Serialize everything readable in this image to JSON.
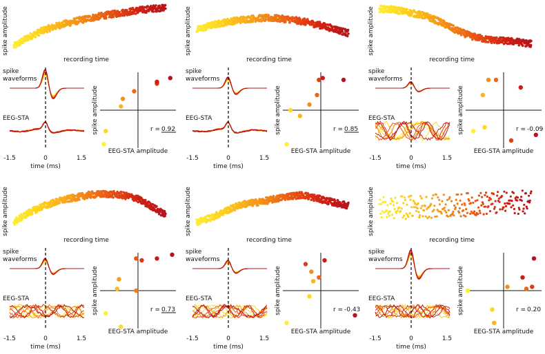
{
  "labels": {
    "spike_amplitude": "spike amplitude",
    "recording_time": "recording time",
    "spike_waveforms_1": "spike",
    "spike_waveforms_2": "waveforms",
    "eeg_sta": "EEG-STA",
    "time_ms": "time (ms)",
    "eeg_sta_amplitude": "EEG-STA amplitude",
    "tick_neg": "-1.5",
    "tick_zero": "0",
    "tick_pos": "1.5"
  },
  "colors": {
    "gradient": [
      "#ffee33",
      "#ffd21e",
      "#f9a91a",
      "#f07d17",
      "#e64a14",
      "#cf1f14",
      "#b5141c"
    ],
    "axis": "#111111",
    "dashed": "#000000"
  },
  "chart_data": [
    {
      "panel": 1,
      "type": "scatter",
      "title": "",
      "correlation": {
        "label": "r = ",
        "value": "0.92",
        "underlined": true
      },
      "amplitude_over_time": {
        "xlabel": "recording time",
        "ylabel": "spike amplitude",
        "x": [
          0,
          0.1,
          0.2,
          0.3,
          0.4,
          0.5,
          0.6,
          0.7,
          0.8,
          0.9,
          1
        ],
        "y": [
          0.1,
          0.3,
          0.45,
          0.55,
          0.63,
          0.7,
          0.76,
          0.81,
          0.86,
          0.9,
          0.93
        ]
      },
      "waveform_peak_scale": 1.0,
      "sta_pattern": "consistent",
      "scatter": {
        "xlabel": "EEG-STA amplitude",
        "ylabel": "spike amplitude",
        "points": [
          [
            -0.9,
            -0.9
          ],
          [
            -0.85,
            -0.55
          ],
          [
            -0.45,
            0.1
          ],
          [
            -0.4,
            0.3
          ],
          [
            -0.1,
            0.5
          ],
          [
            0.5,
            0.7
          ],
          [
            0.5,
            0.75
          ],
          [
            0.85,
            0.85
          ]
        ]
      }
    },
    {
      "panel": 2,
      "type": "scatter",
      "correlation": {
        "label": "r = ",
        "value": "0.85",
        "underlined": true
      },
      "amplitude_over_time": {
        "xlabel": "recording time",
        "ylabel": "spike amplitude",
        "x": [
          0,
          0.1,
          0.2,
          0.3,
          0.4,
          0.5,
          0.6,
          0.7,
          0.8,
          0.9,
          1
        ],
        "y": [
          0.45,
          0.55,
          0.62,
          0.67,
          0.7,
          0.7,
          0.68,
          0.63,
          0.56,
          0.48,
          0.38
        ]
      },
      "waveform_peak_scale": 0.6,
      "sta_pattern": "consistent",
      "scatter": {
        "xlabel": "EEG-STA amplitude",
        "ylabel": "spike amplitude",
        "points": [
          [
            -0.9,
            -0.9
          ],
          [
            -0.8,
            0.0
          ],
          [
            -0.55,
            -0.15
          ],
          [
            -0.3,
            0.15
          ],
          [
            -0.1,
            0.4
          ],
          [
            -0.05,
            0.8
          ],
          [
            0.05,
            0.85
          ],
          [
            0.6,
            0.8
          ]
        ]
      }
    },
    {
      "panel": 3,
      "type": "scatter",
      "correlation": {
        "label": "r = ",
        "value": "-0.09",
        "underlined": false
      },
      "amplitude_over_time": {
        "xlabel": "recording time",
        "ylabel": "spike amplitude",
        "x": [
          0,
          0.1,
          0.2,
          0.3,
          0.4,
          0.5,
          0.6,
          0.7,
          0.8,
          0.9,
          1
        ],
        "y": [
          0.9,
          0.88,
          0.82,
          0.75,
          0.62,
          0.45,
          0.32,
          0.25,
          0.22,
          0.2,
          0.15
        ]
      },
      "waveform_peak_scale": 0.35,
      "sta_pattern": "noisy",
      "scatter": {
        "xlabel": "EEG-STA amplitude",
        "ylabel": "spike amplitude",
        "points": [
          [
            -0.8,
            -0.55
          ],
          [
            -0.5,
            -0.45
          ],
          [
            -0.55,
            0.4
          ],
          [
            -0.4,
            0.8
          ],
          [
            -0.2,
            0.8
          ],
          [
            0.2,
            -0.8
          ],
          [
            0.45,
            0.6
          ],
          [
            0.85,
            -0.65
          ]
        ]
      }
    },
    {
      "panel": 4,
      "type": "scatter",
      "correlation": {
        "label": "r = ",
        "value": "0.73",
        "underlined": true
      },
      "amplitude_over_time": {
        "xlabel": "recording time",
        "ylabel": "spike amplitude",
        "x": [
          0,
          0.1,
          0.2,
          0.3,
          0.4,
          0.5,
          0.6,
          0.7,
          0.8,
          0.9,
          1
        ],
        "y": [
          0.2,
          0.4,
          0.55,
          0.65,
          0.72,
          0.78,
          0.8,
          0.78,
          0.72,
          0.55,
          0.35
        ]
      },
      "waveform_peak_scale": 0.55,
      "sta_pattern": "mixed",
      "scatter": {
        "xlabel": "EEG-STA amplitude",
        "ylabel": "spike amplitude",
        "points": [
          [
            -0.85,
            -0.6
          ],
          [
            -0.45,
            -0.95
          ],
          [
            -0.55,
            0.05
          ],
          [
            -0.5,
            0.3
          ],
          [
            -0.05,
            0.0
          ],
          [
            -0.05,
            0.85
          ],
          [
            0.1,
            0.8
          ],
          [
            0.5,
            0.85
          ],
          [
            0.9,
            0.95
          ]
        ]
      }
    },
    {
      "panel": 5,
      "type": "scatter",
      "correlation": {
        "label": "r = ",
        "value": "-0.43",
        "underlined": false
      },
      "amplitude_over_time": {
        "xlabel": "recording time",
        "ylabel": "spike amplitude",
        "x": [
          0,
          0.1,
          0.2,
          0.3,
          0.4,
          0.5,
          0.6,
          0.7,
          0.8,
          0.9,
          1
        ],
        "y": [
          0.2,
          0.3,
          0.45,
          0.58,
          0.62,
          0.68,
          0.75,
          0.78,
          0.7,
          0.62,
          0.55
        ]
      },
      "waveform_peak_scale": 0.45,
      "sta_pattern": "mixed",
      "scatter": {
        "xlabel": "EEG-STA amplitude",
        "ylabel": "spike amplitude",
        "points": [
          [
            -0.9,
            -0.85
          ],
          [
            -0.3,
            -0.15
          ],
          [
            -0.2,
            0.25
          ],
          [
            -0.25,
            0.5
          ],
          [
            -0.05,
            0.35
          ],
          [
            -0.4,
            0.7
          ],
          [
            0.1,
            0.8
          ],
          [
            0.9,
            -0.65
          ]
        ]
      }
    },
    {
      "panel": 6,
      "type": "scatter",
      "correlation": {
        "label": "r = ",
        "value": "0.20",
        "underlined": false
      },
      "amplitude_over_time": {
        "xlabel": "recording time",
        "ylabel": "spike amplitude",
        "x": [
          0,
          0.1,
          0.2,
          0.3,
          0.4,
          0.5,
          0.6,
          0.7,
          0.8,
          0.9,
          1
        ],
        "y": [
          0.5,
          0.5,
          0.52,
          0.53,
          0.55,
          0.55,
          0.58,
          0.6,
          0.6,
          0.62,
          0.63
        ]
      },
      "waveform_peak_scale": 1.0,
      "sta_pattern": "mixed",
      "scatter": {
        "xlabel": "EEG-STA amplitude",
        "ylabel": "spike amplitude",
        "points": [
          [
            -0.95,
            0.0
          ],
          [
            -0.3,
            -0.5
          ],
          [
            -0.25,
            -0.85
          ],
          [
            0.1,
            0.1
          ],
          [
            0.6,
            0.05
          ],
          [
            0.75,
            0.1
          ],
          [
            0.5,
            0.35
          ],
          [
            0.8,
            0.85
          ]
        ]
      }
    }
  ]
}
